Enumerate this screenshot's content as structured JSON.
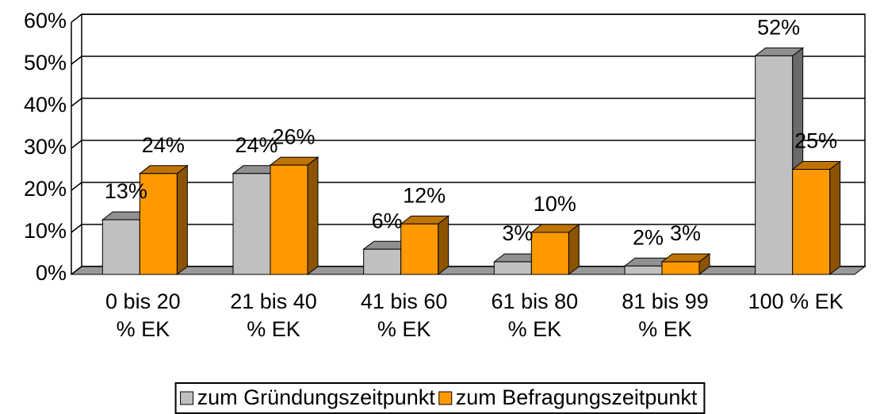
{
  "chart_data": {
    "type": "bar3d",
    "categories": [
      "0 bis 20\n% EK",
      "21 bis 40\n% EK",
      "41 bis 60\n% EK",
      "61 bis 80\n% EK",
      "81 bis 99\n% EK",
      "100 % EK"
    ],
    "series": [
      {
        "name": "zum Gründungszeitpunkt",
        "color": "#c0c0c0",
        "values": [
          13,
          24,
          6,
          3,
          2,
          52
        ],
        "value_labels": [
          "13%",
          "24%",
          "6%",
          "3%",
          "2%",
          "52%"
        ]
      },
      {
        "name": "zum Befragungszeitpunkt",
        "color": "#ff9900",
        "values": [
          24,
          26,
          12,
          10,
          3,
          25
        ],
        "value_labels": [
          "24%",
          "26%",
          "12%",
          "10%",
          "3%",
          "25%"
        ]
      }
    ],
    "ylim": [
      0,
      60
    ],
    "yticks": [
      {
        "value": 0,
        "label": "0%"
      },
      {
        "value": 10,
        "label": "10%"
      },
      {
        "value": 20,
        "label": "20%"
      },
      {
        "value": 30,
        "label": "30%"
      },
      {
        "value": 40,
        "label": "40%"
      },
      {
        "value": 50,
        "label": "50%"
      },
      {
        "value": 60,
        "label": "60%"
      }
    ],
    "grid": true,
    "legend": "bottom"
  }
}
